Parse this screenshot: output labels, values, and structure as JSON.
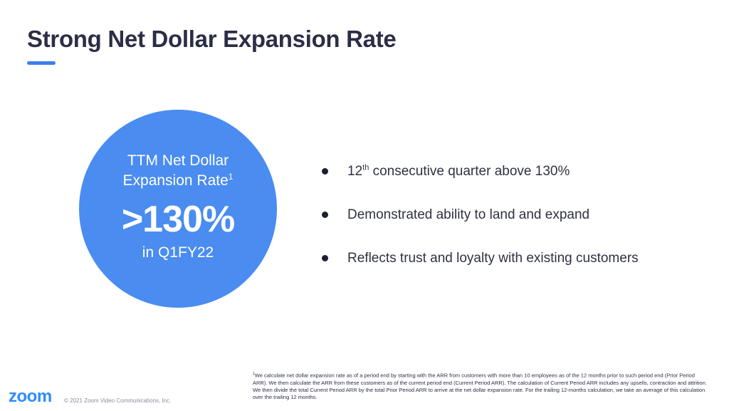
{
  "title": "Strong Net Dollar Expansion Rate",
  "colors": {
    "accent": "#3f7fe9",
    "circle": "#4a8cf0",
    "title_text": "#2b2e45",
    "logo": "#2d8cff"
  },
  "metric": {
    "label_line1": "TTM Net Dollar",
    "label_line2": "Expansion Rate",
    "label_footnote_ref": "1",
    "value": ">130%",
    "period": "in Q1FY22"
  },
  "bullets": [
    {
      "prefix": "12",
      "sup": "th",
      "text": " consecutive quarter above 130%"
    },
    {
      "text": "Demonstrated ability to land and expand"
    },
    {
      "text": "Reflects trust and loyalty with existing customers"
    }
  ],
  "footnote": {
    "marker": "1",
    "text": "We calculate net dollar expansion rate as of a period end by starting with the ARR from customers with more than 10 employees as of the 12 months prior to such period end (Prior Period ARR). We then calculate the ARR from these customers as of the current period end (Current Period ARR). The calculation of Current Period ARR includes any upsells, contraction and attrition. We then divide the total Current Period ARR by the total Prior Period ARR to arrive at the net dollar expansion rate. For the trailing 12-months calculation, we take an average of this calculation over the trailing 12 months."
  },
  "logo_text": "zoom",
  "copyright": "© 2021 Zoom Video Communications, Inc."
}
